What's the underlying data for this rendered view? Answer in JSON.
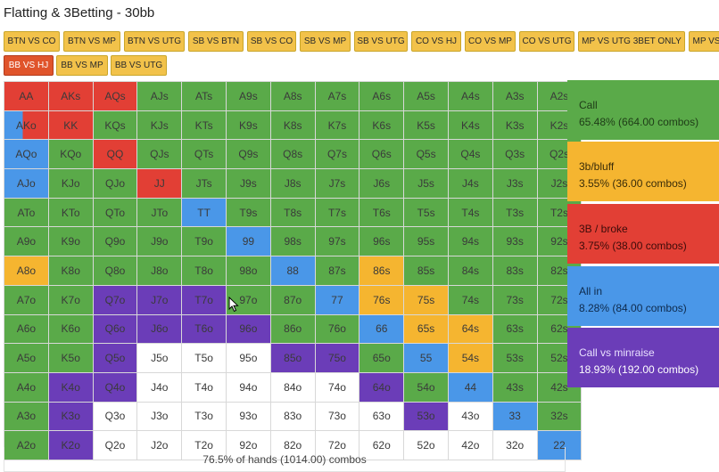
{
  "title": "Flatting & 3Betting - 30bb",
  "tabs": [
    {
      "label": "BTN VS CO",
      "active": false
    },
    {
      "label": "BTN VS MP",
      "active": false
    },
    {
      "label": "BTN VS UTG",
      "active": false
    },
    {
      "label": "SB VS BTN",
      "active": false
    },
    {
      "label": "SB VS CO",
      "active": false
    },
    {
      "label": "SB VS MP",
      "active": false
    },
    {
      "label": "SB VS UTG",
      "active": false
    },
    {
      "label": "CO VS HJ",
      "active": false
    },
    {
      "label": "CO VS MP",
      "active": false
    },
    {
      "label": "CO VS UTG",
      "active": false
    },
    {
      "label": "MP VS UTG 3BET ONLY",
      "active": false
    },
    {
      "label": "MP VS",
      "active": false
    },
    {
      "label": "BB VS HJ",
      "active": true
    },
    {
      "label": "BB VS MP",
      "active": false
    },
    {
      "label": "BB VS UTG",
      "active": false
    }
  ],
  "colors": {
    "call": "#5aaa49",
    "bluff": "#f5b530",
    "broke": "#e23f35",
    "allin": "#4a97e8",
    "minraise": "#6b3db8",
    "fold": "#ffffff",
    "tab": "#f2c24a",
    "tab_active": "#e0542b"
  },
  "grid": [
    [
      [
        "AA",
        "broke"
      ],
      [
        "AKs",
        "broke"
      ],
      [
        "AQs",
        "broke"
      ],
      [
        "AJs",
        "call"
      ],
      [
        "ATs",
        "call"
      ],
      [
        "A9s",
        "call"
      ],
      [
        "A8s",
        "call"
      ],
      [
        "A7s",
        "call"
      ],
      [
        "A6s",
        "call"
      ],
      [
        "A5s",
        "call"
      ],
      [
        "A4s",
        "call"
      ],
      [
        "A3s",
        "call"
      ],
      [
        "A2s",
        "call"
      ]
    ],
    [
      [
        "AKo",
        "split-broke-allin"
      ],
      [
        "KK",
        "broke"
      ],
      [
        "KQs",
        "call"
      ],
      [
        "KJs",
        "call"
      ],
      [
        "KTs",
        "call"
      ],
      [
        "K9s",
        "call"
      ],
      [
        "K8s",
        "call"
      ],
      [
        "K7s",
        "call"
      ],
      [
        "K6s",
        "call"
      ],
      [
        "K5s",
        "call"
      ],
      [
        "K4s",
        "call"
      ],
      [
        "K3s",
        "call"
      ],
      [
        "K2s",
        "call"
      ]
    ],
    [
      [
        "AQo",
        "allin"
      ],
      [
        "KQo",
        "call"
      ],
      [
        "QQ",
        "broke"
      ],
      [
        "QJs",
        "call"
      ],
      [
        "QTs",
        "call"
      ],
      [
        "Q9s",
        "call"
      ],
      [
        "Q8s",
        "call"
      ],
      [
        "Q7s",
        "call"
      ],
      [
        "Q6s",
        "call"
      ],
      [
        "Q5s",
        "call"
      ],
      [
        "Q4s",
        "call"
      ],
      [
        "Q3s",
        "call"
      ],
      [
        "Q2s",
        "call"
      ]
    ],
    [
      [
        "AJo",
        "allin"
      ],
      [
        "KJo",
        "call"
      ],
      [
        "QJo",
        "call"
      ],
      [
        "JJ",
        "broke"
      ],
      [
        "JTs",
        "call"
      ],
      [
        "J9s",
        "call"
      ],
      [
        "J8s",
        "call"
      ],
      [
        "J7s",
        "call"
      ],
      [
        "J6s",
        "call"
      ],
      [
        "J5s",
        "call"
      ],
      [
        "J4s",
        "call"
      ],
      [
        "J3s",
        "call"
      ],
      [
        "J2s",
        "call"
      ]
    ],
    [
      [
        "ATo",
        "call"
      ],
      [
        "KTo",
        "call"
      ],
      [
        "QTo",
        "call"
      ],
      [
        "JTo",
        "call"
      ],
      [
        "TT",
        "allin"
      ],
      [
        "T9s",
        "call"
      ],
      [
        "T8s",
        "call"
      ],
      [
        "T7s",
        "call"
      ],
      [
        "T6s",
        "call"
      ],
      [
        "T5s",
        "call"
      ],
      [
        "T4s",
        "call"
      ],
      [
        "T3s",
        "call"
      ],
      [
        "T2s",
        "call"
      ]
    ],
    [
      [
        "A9o",
        "call"
      ],
      [
        "K9o",
        "call"
      ],
      [
        "Q9o",
        "call"
      ],
      [
        "J9o",
        "call"
      ],
      [
        "T9o",
        "call"
      ],
      [
        "99",
        "allin"
      ],
      [
        "98s",
        "call"
      ],
      [
        "97s",
        "call"
      ],
      [
        "96s",
        "call"
      ],
      [
        "95s",
        "call"
      ],
      [
        "94s",
        "call"
      ],
      [
        "93s",
        "call"
      ],
      [
        "92s",
        "call"
      ]
    ],
    [
      [
        "A8o",
        "bluff"
      ],
      [
        "K8o",
        "call"
      ],
      [
        "Q8o",
        "call"
      ],
      [
        "J8o",
        "call"
      ],
      [
        "T8o",
        "call"
      ],
      [
        "98o",
        "call"
      ],
      [
        "88",
        "allin"
      ],
      [
        "87s",
        "call"
      ],
      [
        "86s",
        "bluff"
      ],
      [
        "85s",
        "call"
      ],
      [
        "84s",
        "call"
      ],
      [
        "83s",
        "call"
      ],
      [
        "82s",
        "call"
      ]
    ],
    [
      [
        "A7o",
        "call"
      ],
      [
        "K7o",
        "call"
      ],
      [
        "Q7o",
        "minr"
      ],
      [
        "J7o",
        "minr"
      ],
      [
        "T7o",
        "minr"
      ],
      [
        "97o",
        "call"
      ],
      [
        "87o",
        "call"
      ],
      [
        "77",
        "allin"
      ],
      [
        "76s",
        "bluff"
      ],
      [
        "75s",
        "bluff"
      ],
      [
        "74s",
        "call"
      ],
      [
        "73s",
        "call"
      ],
      [
        "72s",
        "call"
      ]
    ],
    [
      [
        "A6o",
        "call"
      ],
      [
        "K6o",
        "call"
      ],
      [
        "Q6o",
        "minr"
      ],
      [
        "J6o",
        "minr"
      ],
      [
        "T6o",
        "minr"
      ],
      [
        "96o",
        "minr"
      ],
      [
        "86o",
        "call"
      ],
      [
        "76o",
        "call"
      ],
      [
        "66",
        "allin"
      ],
      [
        "65s",
        "bluff"
      ],
      [
        "64s",
        "bluff"
      ],
      [
        "63s",
        "call"
      ],
      [
        "62s",
        "call"
      ]
    ],
    [
      [
        "A5o",
        "call"
      ],
      [
        "K5o",
        "call"
      ],
      [
        "Q5o",
        "minr"
      ],
      [
        "J5o",
        "fold"
      ],
      [
        "T5o",
        "fold"
      ],
      [
        "95o",
        "fold"
      ],
      [
        "85o",
        "minr"
      ],
      [
        "75o",
        "minr"
      ],
      [
        "65o",
        "call"
      ],
      [
        "55",
        "allin"
      ],
      [
        "54s",
        "bluff"
      ],
      [
        "53s",
        "call"
      ],
      [
        "52s",
        "call"
      ]
    ],
    [
      [
        "A4o",
        "call"
      ],
      [
        "K4o",
        "minr"
      ],
      [
        "Q4o",
        "minr"
      ],
      [
        "J4o",
        "fold"
      ],
      [
        "T4o",
        "fold"
      ],
      [
        "94o",
        "fold"
      ],
      [
        "84o",
        "fold"
      ],
      [
        "74o",
        "fold"
      ],
      [
        "64o",
        "minr"
      ],
      [
        "54o",
        "call"
      ],
      [
        "44",
        "allin"
      ],
      [
        "43s",
        "call"
      ],
      [
        "42s",
        "call"
      ]
    ],
    [
      [
        "A3o",
        "call"
      ],
      [
        "K3o",
        "minr"
      ],
      [
        "Q3o",
        "fold"
      ],
      [
        "J3o",
        "fold"
      ],
      [
        "T3o",
        "fold"
      ],
      [
        "93o",
        "fold"
      ],
      [
        "83o",
        "fold"
      ],
      [
        "73o",
        "fold"
      ],
      [
        "63o",
        "fold"
      ],
      [
        "53o",
        "minr"
      ],
      [
        "43o",
        "fold"
      ],
      [
        "33",
        "allin"
      ],
      [
        "32s",
        "call"
      ]
    ],
    [
      [
        "A2o",
        "call"
      ],
      [
        "K2o",
        "minr"
      ],
      [
        "Q2o",
        "fold"
      ],
      [
        "J2o",
        "fold"
      ],
      [
        "T2o",
        "fold"
      ],
      [
        "92o",
        "fold"
      ],
      [
        "82o",
        "fold"
      ],
      [
        "72o",
        "fold"
      ],
      [
        "62o",
        "fold"
      ],
      [
        "52o",
        "fold"
      ],
      [
        "42o",
        "fold"
      ],
      [
        "32o",
        "fold"
      ],
      [
        "22",
        "allin"
      ]
    ]
  ],
  "legend": {
    "call": {
      "label": "Call",
      "stats": "65.48% (664.00 combos)"
    },
    "bluff": {
      "label": "3b/bluff",
      "stats": "3.55% (36.00 combos)"
    },
    "broke": {
      "label": "3B / broke",
      "stats": "3.75% (38.00 combos)"
    },
    "allin": {
      "label": "All in",
      "stats": "8.28% (84.00 combos)"
    },
    "minraise": {
      "label": "Call vs minraise",
      "stats": "18.93% (192.00 combos)"
    }
  },
  "footer": "76.5% of hands (1014.00) combos"
}
